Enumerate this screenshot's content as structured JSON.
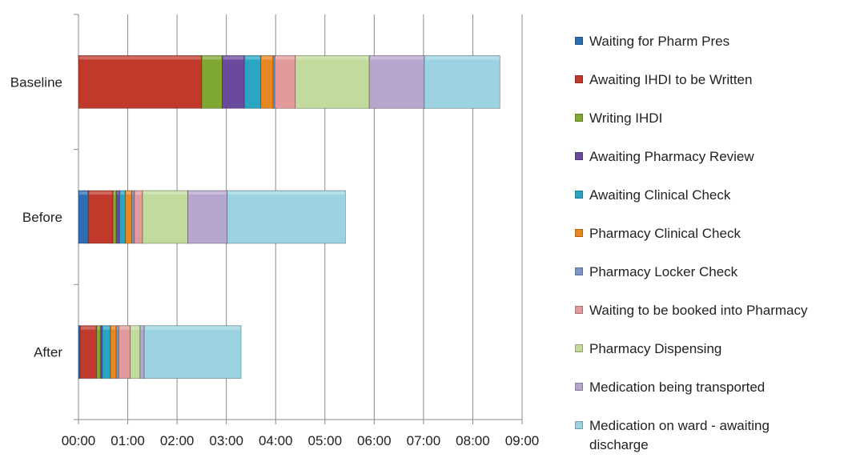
{
  "chart_data": {
    "type": "bar",
    "orientation": "horizontal",
    "stacked": true,
    "categories": [
      "Baseline",
      "Before",
      "After"
    ],
    "x_unit": "hh:mm",
    "xlim": [
      "00:00",
      "09:00"
    ],
    "x_ticks": [
      "00:00",
      "01:00",
      "02:00",
      "03:00",
      "04:00",
      "05:00",
      "06:00",
      "07:00",
      "08:00",
      "09:00"
    ],
    "grid": "vertical",
    "legend_position": "right",
    "series": [
      {
        "name": "Waiting for Pharm Pres",
        "color": "#2E6DB4",
        "values": [
          "00:00",
          "00:12",
          "00:02"
        ]
      },
      {
        "name": "Awaiting IHDI to be Written",
        "color": "#C0392B",
        "values": [
          "02:30",
          "00:30",
          "00:20"
        ]
      },
      {
        "name": "Writing IHDI",
        "color": "#7FA832",
        "values": [
          "00:25",
          "00:04",
          "00:05"
        ]
      },
      {
        "name": "Awaiting Pharmacy Review",
        "color": "#6A4A9C",
        "values": [
          "00:27",
          "00:04",
          "00:02"
        ]
      },
      {
        "name": "Awaiting Clinical Check",
        "color": "#2AA6C4",
        "values": [
          "00:20",
          "00:07",
          "00:10"
        ]
      },
      {
        "name": "Pharmacy Clinical Check",
        "color": "#E8861F",
        "values": [
          "00:15",
          "00:08",
          "00:07"
        ]
      },
      {
        "name": "Pharmacy Locker Check",
        "color": "#7D96C8",
        "values": [
          "00:02",
          "00:03",
          "00:03"
        ]
      },
      {
        "name": "Waiting to be booked into Pharmacy",
        "color": "#E29A9A",
        "values": [
          "00:25",
          "00:10",
          "00:14"
        ]
      },
      {
        "name": "Pharmacy Dispensing",
        "color": "#C2DA9C",
        "values": [
          "01:30",
          "00:55",
          "00:12"
        ]
      },
      {
        "name": "Medication being transported",
        "color": "#B5A6CE",
        "values": [
          "01:07",
          "00:48",
          "00:05"
        ]
      },
      {
        "name": "Medication on ward - awaiting discharge",
        "color": "#9CD3E2",
        "values": [
          "01:32",
          "02:24",
          "01:58"
        ]
      }
    ]
  }
}
